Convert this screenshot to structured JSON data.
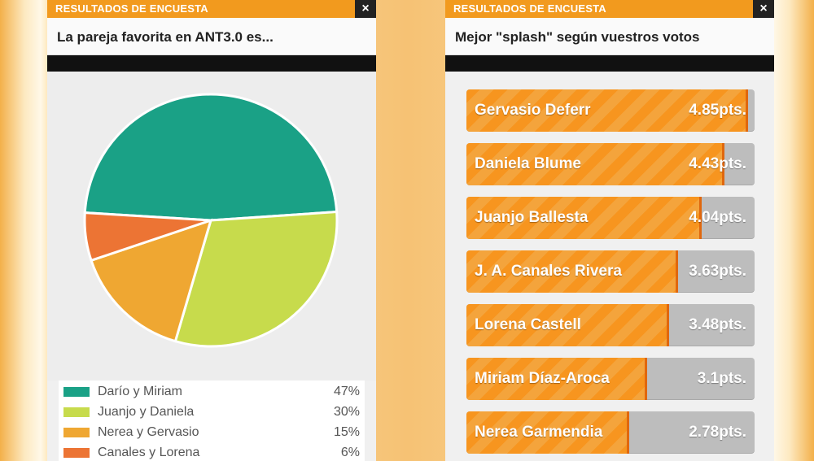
{
  "colors": {
    "accent": "#f29a1e",
    "pie": [
      "#1aa186",
      "#c7db4c",
      "#efa732",
      "#ec7434"
    ]
  },
  "left_panel": {
    "header_title": "RESULTADOS DE ENCUESTA",
    "close_label": "×",
    "question": "La pareja favorita en ANT3.0 es..."
  },
  "right_panel": {
    "header_title": "RESULTADOS DE ENCUESTA",
    "close_label": "×",
    "question": "Mejor \"splash\" según vuestros votos"
  },
  "chart_data": [
    {
      "type": "pie",
      "title": "La pareja favorita en ANT3.0 es...",
      "series": [
        {
          "name": "Darío y Miriam",
          "label": "47%",
          "value": 47,
          "color": "#1aa186"
        },
        {
          "name": "Juanjo y Daniela",
          "label": "30%",
          "value": 30,
          "color": "#c7db4c"
        },
        {
          "name": "Nerea y Gervasio",
          "label": "15%",
          "value": 15,
          "color": "#efa732"
        },
        {
          "name": "Canales y Lorena",
          "label": "6%",
          "value": 6,
          "color": "#ec7434"
        }
      ]
    },
    {
      "type": "bar",
      "title": "Mejor \"splash\" según vuestros votos",
      "ylim": [
        0,
        5
      ],
      "categories": [
        "Gervasio Deferr",
        "Daniela Blume",
        "Juanjo Ballesta",
        "J. A. Canales Rivera",
        "Lorena Castell",
        "Miriam Díaz-Aroca",
        "Nerea Garmendia"
      ],
      "values": [
        4.85,
        4.43,
        4.04,
        3.63,
        3.48,
        3.1,
        2.78
      ],
      "labels": [
        "4.85pts.",
        "4.43pts.",
        "4.04pts.",
        "3.63pts.",
        "3.48pts.",
        "3.1pts.",
        "2.78pts."
      ]
    }
  ]
}
